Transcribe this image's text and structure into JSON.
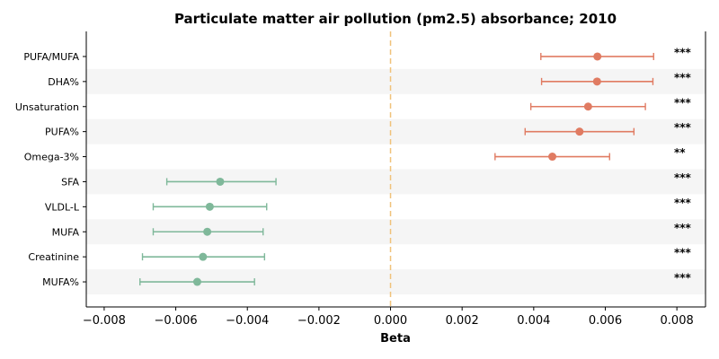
{
  "chart_data": {
    "type": "forest",
    "title": "Particulate matter air pollution (pm2.5) absorbance; 2010",
    "xlabel": "Beta",
    "xlim": [
      -0.0085,
      0.0088
    ],
    "xticks": [
      "−0.008",
      "−0.006",
      "−0.004",
      "−0.002",
      "0.000",
      "0.002",
      "0.004",
      "0.006",
      "0.008"
    ],
    "xtick_values": [
      -0.008,
      -0.006,
      -0.004,
      -0.002,
      0.0,
      0.002,
      0.004,
      0.006,
      0.008
    ],
    "reference_line": 0,
    "colors": {
      "positive": "#e07b62",
      "negative": "#7fb89a",
      "reference": "#f0c27a",
      "band": "#f5f5f5"
    },
    "rows": [
      {
        "label": "PUFA/MUFA",
        "beta": 0.00578,
        "lower": 0.0042,
        "upper": 0.00735,
        "sig": "***"
      },
      {
        "label": "DHA%",
        "beta": 0.00577,
        "lower": 0.00422,
        "upper": 0.00733,
        "sig": "***"
      },
      {
        "label": "Unsaturation",
        "beta": 0.00552,
        "lower": 0.00392,
        "upper": 0.00712,
        "sig": "***"
      },
      {
        "label": "PUFA%",
        "beta": 0.00528,
        "lower": 0.00376,
        "upper": 0.0068,
        "sig": "***"
      },
      {
        "label": "Omega-3%",
        "beta": 0.00452,
        "lower": 0.00292,
        "upper": 0.00612,
        "sig": "**"
      },
      {
        "label": "SFA",
        "beta": -0.00476,
        "lower": -0.00625,
        "upper": -0.0032,
        "sig": "***"
      },
      {
        "label": "VLDL-L",
        "beta": -0.00505,
        "lower": -0.00663,
        "upper": -0.00346,
        "sig": "***"
      },
      {
        "label": "MUFA",
        "beta": -0.00512,
        "lower": -0.00663,
        "upper": -0.00356,
        "sig": "***"
      },
      {
        "label": "Creatinine",
        "beta": -0.00524,
        "lower": -0.00693,
        "upper": -0.00352,
        "sig": "***"
      },
      {
        "label": "MUFA%",
        "beta": -0.0054,
        "lower": -0.007,
        "upper": -0.0038,
        "sig": "***"
      }
    ]
  }
}
